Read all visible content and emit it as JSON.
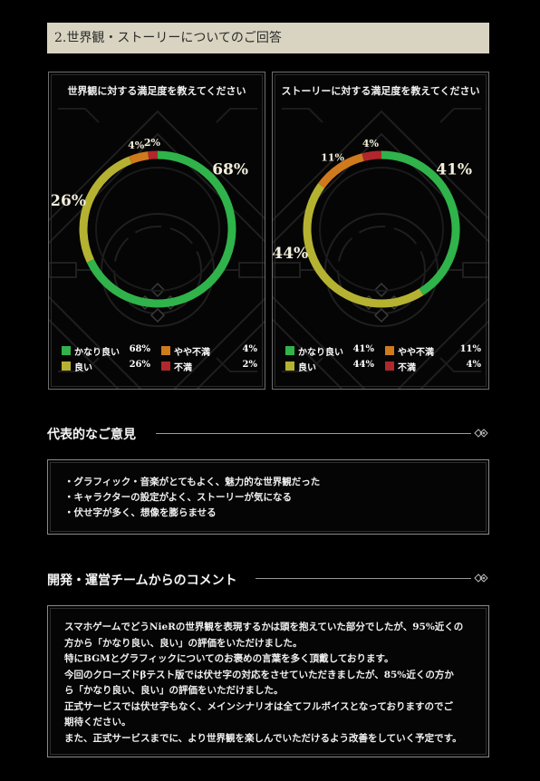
{
  "header": {
    "title": "2.世界観・ストーリーについてのご回答"
  },
  "colors": {
    "very_good": "#2fb34a",
    "good": "#b5b232",
    "somewhat_bad": "#cf7a1d",
    "bad": "#b0272c"
  },
  "chart_data": [
    {
      "type": "pie",
      "title": "世界観に対する満足度を教えてください",
      "labels": [
        "かなり良い",
        "良い",
        "やや不満",
        "不満"
      ],
      "values": [
        68,
        26,
        4,
        2
      ],
      "unit": "%",
      "value_labels": [
        "68%",
        "26%",
        "4%",
        "2%"
      ],
      "legend_values": [
        "68%",
        "26%",
        "4%",
        "2%"
      ]
    },
    {
      "type": "pie",
      "title": "ストーリーに対する満足度を教えてください",
      "labels": [
        "かなり良い",
        "良い",
        "やや不満",
        "不満"
      ],
      "values": [
        41,
        44,
        11,
        4
      ],
      "unit": "%",
      "value_labels": [
        "41%",
        "44%",
        "11%",
        "4%"
      ],
      "legend_values": [
        "41%",
        "44%",
        "11%",
        "4%"
      ]
    }
  ],
  "opinions": {
    "heading": "代表的なご意見",
    "items": [
      "・グラフィック・音楽がとてもよく、魅力的な世界観だった",
      "・キャラクターの設定がよく、ストーリーが気になる",
      "・伏せ字が多く、想像を膨らませる"
    ]
  },
  "comments": {
    "heading": "開発・運営チームからのコメント",
    "lines": [
      "スマホゲームでどうNieRの世界観を表現するかは頭を抱えていた部分でしたが、95%近くの",
      "方から「かなり良い、良い」の評価をいただけました。",
      "特にBGMとグラフィックについてのお褒めの言葉を多く頂戴しております。",
      "今回のクローズドβテスト版では伏せ字の対応をさせていただきましたが、85%近くの方か",
      "ら「かなり良い、良い」の評価をいただけました。",
      "正式サービスでは伏せ字もなく、メインシナリオは全てフルボイスとなっておりますのでご",
      "期待ください。",
      "また、正式サービスまでに、より世界観を楽しんでいただけるよう改善をしていく予定です。"
    ]
  }
}
